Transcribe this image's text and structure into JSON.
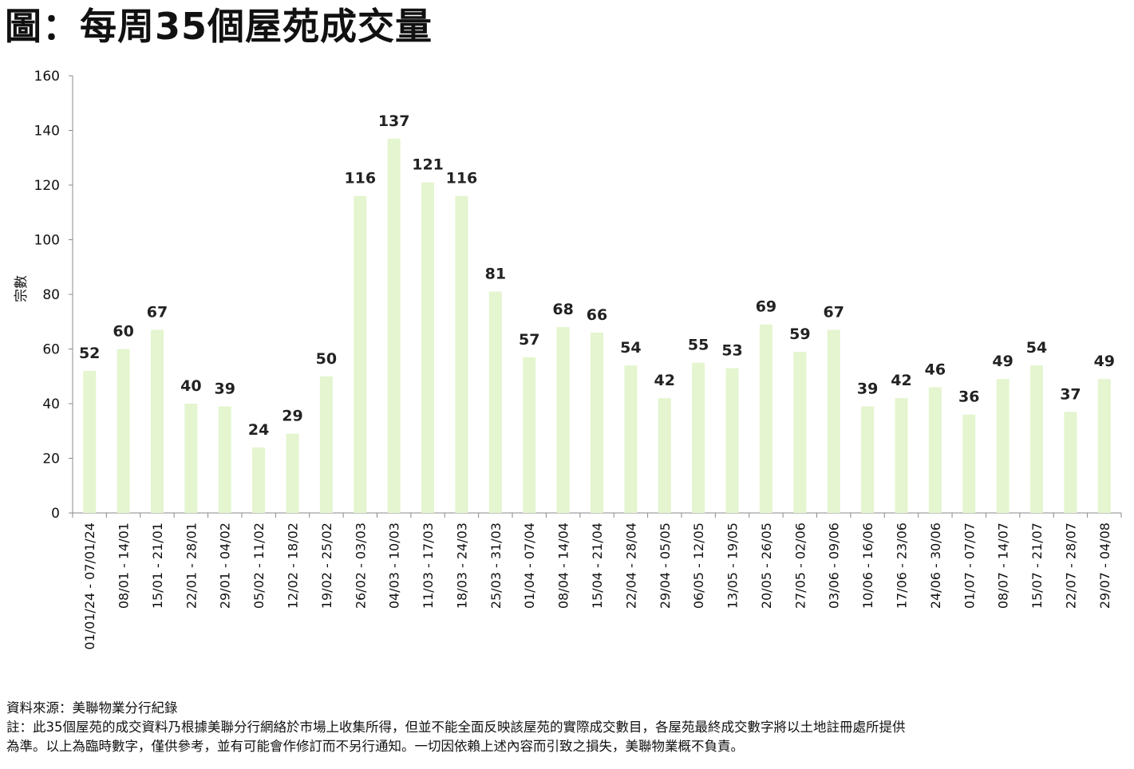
{
  "page": {
    "title": "圖：每周35個屋苑成交量"
  },
  "chart_data": {
    "type": "bar",
    "title": "圖：每周35個屋苑成交量",
    "ylabel": "宗數",
    "xlabel": "",
    "ylim": [
      0,
      160
    ],
    "yticks": [
      0,
      20,
      40,
      60,
      80,
      100,
      120,
      140,
      160
    ],
    "grid": false,
    "legend": "none",
    "bar_color": "#e4f5cf",
    "categories": [
      "01/01/24 - 07/01/24",
      "08/01 - 14/01",
      "15/01 - 21/01",
      "22/01 - 28/01",
      "29/01 - 04/02",
      "05/02 - 11/02",
      "12/02 - 18/02",
      "19/02 - 25/02",
      "26/02 - 03/03",
      "04/03 - 10/03",
      "11/03 - 17/03",
      "18/03 - 24/03",
      "25/03 - 31/03",
      "01/04 - 07/04",
      "08/04 - 14/04",
      "15/04 - 21/04",
      "22/04 - 28/04",
      "29/04 - 05/05",
      "06/05 - 12/05",
      "13/05 - 19/05",
      "20/05 - 26/05",
      "27/05 - 02/06",
      "03/06 - 09/06",
      "10/06 - 16/06",
      "17/06 - 23/06",
      "24/06 - 30/06",
      "01/07 - 07/07",
      "08/07 - 14/07",
      "15/07 - 21/07",
      "22/07 - 28/07",
      "29/07 - 04/08"
    ],
    "values": [
      52,
      60,
      67,
      40,
      39,
      24,
      29,
      50,
      116,
      137,
      121,
      116,
      81,
      57,
      68,
      66,
      54,
      42,
      55,
      53,
      69,
      59,
      67,
      39,
      42,
      46,
      36,
      49,
      54,
      37,
      49
    ]
  },
  "footer": {
    "source": "資料來源：美聯物業分行紀錄",
    "note_line1": "註：此35個屋苑的成交資料乃根據美聯分行網絡於市場上收集所得，但並不能全面反映該屋苑的實際成交數目，各屋苑最終成交數字將以土地註冊處所提供",
    "note_line2": "為準。以上為臨時數字，僅供參考，並有可能會作修訂而不另行通知。一切因依賴上述內容而引致之損失，美聯物業概不負責。"
  }
}
